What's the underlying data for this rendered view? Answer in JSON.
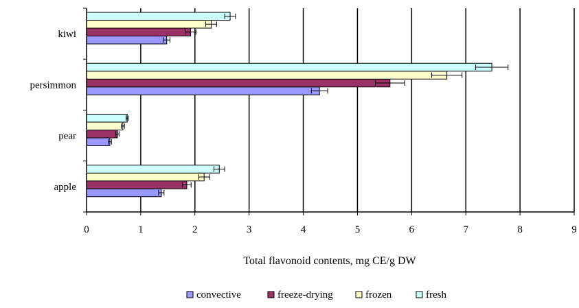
{
  "chart_data": {
    "type": "bar",
    "orientation": "horizontal",
    "categories": [
      "apple",
      "pear",
      "persimmon",
      "kiwi"
    ],
    "series": [
      {
        "name": "convective",
        "color": "#9999ff",
        "values": [
          1.38,
          0.43,
          4.3,
          1.48
        ],
        "errors": [
          0.05,
          0.03,
          0.15,
          0.06
        ]
      },
      {
        "name": "freeze-drying",
        "color": "#993366",
        "values": [
          1.85,
          0.57,
          5.6,
          1.92
        ],
        "errors": [
          0.08,
          0.03,
          0.27,
          0.1
        ]
      },
      {
        "name": "frozen",
        "color": "#ffffcc",
        "values": [
          2.17,
          0.67,
          6.65,
          2.3
        ],
        "errors": [
          0.1,
          0.03,
          0.28,
          0.1
        ]
      },
      {
        "name": "fresh",
        "color": "#ccffff",
        "values": [
          2.45,
          0.75,
          7.48,
          2.65
        ],
        "errors": [
          0.1,
          0.02,
          0.3,
          0.1
        ]
      }
    ],
    "xlabel": "Total flavonoid contents, mg CE/g DW",
    "ylabel": "",
    "title": "",
    "xlim": [
      0,
      9
    ],
    "xticks": [
      "0",
      "1",
      "2",
      "3",
      "4",
      "5",
      "6",
      "7",
      "8",
      "9"
    ],
    "grid": "vertical major gridlines",
    "legend_position": "bottom"
  }
}
